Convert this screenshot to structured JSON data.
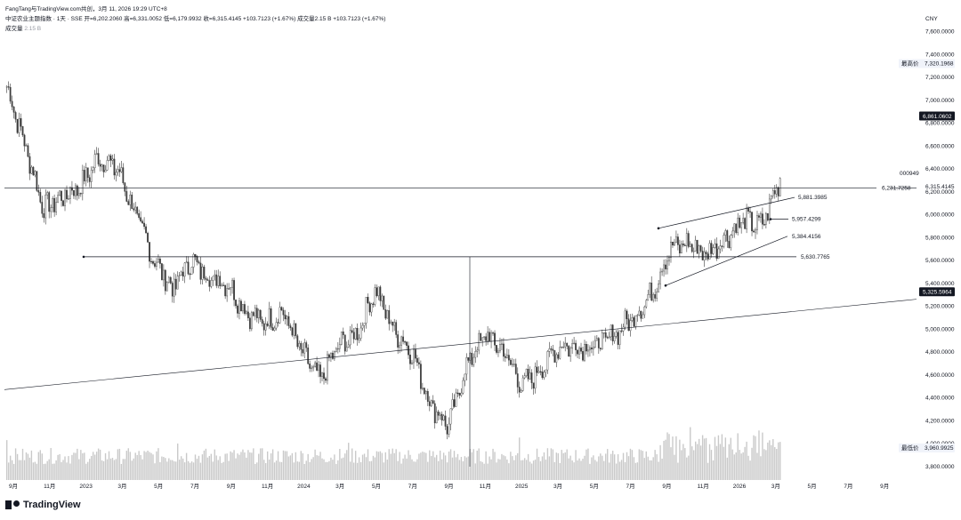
{
  "header": {
    "attribution": "FangTang与TradingView.com共创，3月 11, 2026 19:29 UTC+8",
    "symbol": "中证农业主题指数 · 1天 · SSE",
    "ohlc": "开=6,202.2060  高=6,331.0052  低=6,179.9932  收=6,315.4145  +103.7123 (+1.67%)  成交量2.15 B  +103.7123 (+1.67%)",
    "volume_label": "成交量",
    "volume_value": "2.15 B"
  },
  "currency": "CNY",
  "brand": "TradingView",
  "colors": {
    "up": "#089981",
    "down": "#f23645",
    "candle": "#3d3d3d",
    "volume": "#c9c9c9",
    "line": "#131722"
  },
  "chart_data": {
    "type": "candlestick",
    "x_ticks": [
      "9月",
      "11月",
      "2023",
      "3月",
      "5月",
      "7月",
      "9月",
      "11月",
      "2024",
      "3月",
      "5月",
      "7月",
      "9月",
      "11月",
      "2025",
      "3月",
      "5月",
      "7月",
      "9月",
      "11月",
      "2026",
      "3月",
      "5月",
      "7月",
      "9月"
    ],
    "y_ticks": [
      "3,800.0000",
      "4,000.0000",
      "4,200.0000",
      "4,400.0000",
      "4,600.0000",
      "4,800.0000",
      "5,000.0000",
      "5,200.0000",
      "5,400.0000",
      "5,600.0000",
      "5,800.0000",
      "6,000.0000",
      "6,200.0000",
      "6,400.0000",
      "6,600.0000",
      "6,800.0000",
      "7,000.0000",
      "7,200.0000",
      "7,400.0000",
      "7,600.0000"
    ],
    "ylim": [
      3680,
      7720
    ],
    "series_close": [
      [
        "9月",
        7120
      ],
      [
        "10月",
        6600
      ],
      [
        "11月",
        6050
      ],
      [
        "12月",
        6150
      ],
      [
        "2023",
        6250
      ],
      [
        "2月",
        6500
      ],
      [
        "3月",
        6400
      ],
      [
        "4月",
        6000
      ],
      [
        "5月",
        5600
      ],
      [
        "6月",
        5350
      ],
      [
        "7月",
        5600
      ],
      [
        "8月",
        5450
      ],
      [
        "9月",
        5400
      ],
      [
        "10月",
        5150
      ],
      [
        "11月",
        5050
      ],
      [
        "12月",
        5150
      ],
      [
        "2024",
        4800
      ],
      [
        "2月",
        4550
      ],
      [
        "3月",
        4850
      ],
      [
        "4月",
        4950
      ],
      [
        "5月",
        5350
      ],
      [
        "6月",
        5000
      ],
      [
        "7月",
        4800
      ],
      [
        "8月",
        4350
      ],
      [
        "9月",
        4150
      ],
      [
        "10月",
        4700
      ],
      [
        "11月",
        4950
      ],
      [
        "12月",
        4800
      ],
      [
        "2025",
        4500
      ],
      [
        "2月",
        4650
      ],
      [
        "3月",
        4850
      ],
      [
        "4月",
        4850
      ],
      [
        "5月",
        4850
      ],
      [
        "6月",
        4950
      ],
      [
        "7月",
        5100
      ],
      [
        "8月",
        5300
      ],
      [
        "9月",
        5700
      ],
      [
        "10月",
        5750
      ],
      [
        "11月",
        5650
      ],
      [
        "12月",
        5800
      ],
      [
        "2026",
        5950
      ],
      [
        "2月",
        5900
      ],
      [
        "3月",
        6315
      ]
    ],
    "last_close": 6315.4145,
    "annotations": {
      "horizontal_line": 6231.7258,
      "horizontal_line_label": "6,231.7258",
      "support_line": 5630.7765,
      "support_line_label": "5,630.7765",
      "channel_top_label": "5,881.3985",
      "channel_mid_label": "5,957.4299",
      "channel_bottom_label": "5,384.4156",
      "symbol_tag": "000949",
      "price_tag": "6,315.4145",
      "cursor_tag": "6,861.0602",
      "trendline_tag": "5,325.5964",
      "high_label": "最高价",
      "high_value": "7,320.1968",
      "low_label": "最低价",
      "low_value": "3,960.9925"
    }
  }
}
